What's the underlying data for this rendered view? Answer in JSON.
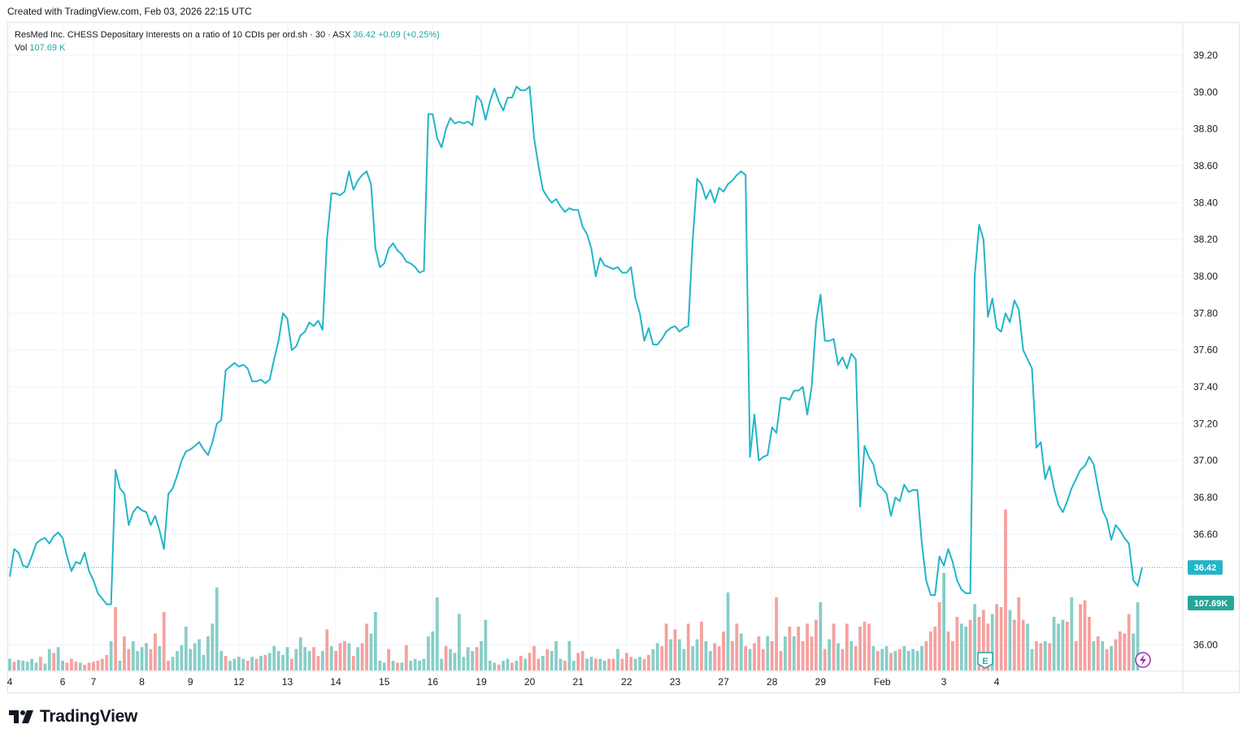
{
  "caption": "Created with TradingView.com, Feb 03, 2026 22:15 UTC",
  "legend": {
    "symbol_text": "ResMed Inc. CHESS Depositary Interests on a ratio of 10 CDIs per ord.sh · 30 · ASX",
    "last_price": "36.42",
    "change": "+0.09 (+0.25%)",
    "vol_label": "Vol",
    "vol_value": "107.69 K"
  },
  "brand": "TradingView",
  "colors": {
    "line": "#22b5c8",
    "volume_up": "#26a69a",
    "volume_down": "#ef5350",
    "price_badge": "#22b5c8",
    "volume_badge": "#26a69a",
    "grid": "#f0f3fa",
    "earnings_marker": "#26a69a",
    "dividend_marker": "#9c27b0"
  },
  "price_badge": "36.42",
  "volume_badge": "107.69K",
  "markers": [
    {
      "name": "earnings-marker",
      "label": "E",
      "color": "#26a69a"
    },
    {
      "name": "flash-marker",
      "icon": "lightning-icon",
      "color": "#9c27b0"
    }
  ],
  "chart_data": {
    "type": "line",
    "interval": "30",
    "exchange": "ASX",
    "y_axis": {
      "ticks": [
        "39.20",
        "39.00",
        "38.80",
        "38.60",
        "38.40",
        "38.20",
        "38.00",
        "37.80",
        "37.60",
        "37.40",
        "37.20",
        "37.00",
        "36.80",
        "36.60",
        "36.00"
      ],
      "tick_values": [
        39.2,
        39.0,
        38.8,
        38.6,
        38.4,
        38.2,
        38.0,
        37.8,
        37.6,
        37.4,
        37.2,
        37.0,
        36.8,
        36.6,
        36.0
      ],
      "ylim": [
        35.85,
        39.45
      ]
    },
    "x_axis": {
      "ticks": [
        "4",
        "6",
        "7",
        "8",
        "9",
        "12",
        "13",
        "14",
        "15",
        "16",
        "19",
        "20",
        "21",
        "22",
        "23",
        "27",
        "28",
        "29",
        "Feb",
        "3",
        "4"
      ],
      "tick_index": [
        0,
        12,
        19,
        30,
        41,
        52,
        63,
        74,
        85,
        96,
        107,
        118,
        129,
        140,
        151,
        162,
        173,
        184,
        198,
        212,
        224
      ]
    },
    "grid": true,
    "price_series": [
      36.37,
      36.52,
      36.5,
      36.43,
      36.42,
      36.48,
      36.55,
      36.57,
      36.58,
      36.55,
      36.59,
      36.61,
      36.58,
      36.48,
      36.4,
      36.45,
      36.44,
      36.5,
      36.4,
      36.35,
      36.28,
      36.25,
      36.22,
      36.22,
      36.95,
      36.85,
      36.82,
      36.65,
      36.72,
      36.75,
      36.73,
      36.72,
      36.65,
      36.7,
      36.62,
      36.52,
      36.82,
      36.85,
      36.92,
      37.0,
      37.05,
      37.06,
      37.08,
      37.1,
      37.06,
      37.03,
      37.1,
      37.2,
      37.22,
      37.49,
      37.51,
      37.53,
      37.51,
      37.52,
      37.5,
      37.43,
      37.43,
      37.44,
      37.42,
      37.44,
      37.55,
      37.65,
      37.8,
      37.77,
      37.6,
      37.62,
      37.68,
      37.7,
      37.75,
      37.73,
      37.76,
      37.71,
      38.2,
      38.45,
      38.45,
      38.44,
      38.46,
      38.57,
      38.47,
      38.52,
      38.55,
      38.57,
      38.5,
      38.15,
      38.05,
      38.07,
      38.15,
      38.18,
      38.14,
      38.12,
      38.08,
      38.07,
      38.05,
      38.02,
      38.03,
      38.88,
      38.88,
      38.75,
      38.7,
      38.8,
      38.86,
      38.83,
      38.84,
      38.83,
      38.84,
      38.82,
      38.98,
      38.95,
      38.85,
      38.95,
      39.02,
      38.95,
      38.9,
      38.97,
      38.97,
      39.03,
      39.01,
      39.01,
      39.03,
      38.75,
      38.6,
      38.47,
      38.43,
      38.4,
      38.42,
      38.38,
      38.35,
      38.37,
      38.36,
      38.36,
      38.27,
      38.23,
      38.15,
      38.0,
      38.1,
      38.06,
      38.05,
      38.04,
      38.05,
      38.02,
      38.02,
      38.05,
      37.88,
      37.8,
      37.65,
      37.72,
      37.63,
      37.63,
      37.66,
      37.7,
      37.72,
      37.73,
      37.7,
      37.72,
      37.73,
      38.2,
      38.53,
      38.5,
      38.42,
      38.47,
      38.4,
      38.48,
      38.46,
      38.5,
      38.52,
      38.55,
      38.57,
      38.55,
      37.02,
      37.25,
      37.0,
      37.02,
      37.03,
      37.18,
      37.15,
      37.34,
      37.34,
      37.33,
      37.38,
      37.38,
      37.4,
      37.25,
      37.4,
      37.75,
      37.9,
      37.65,
      37.65,
      37.66,
      37.52,
      37.56,
      37.5,
      37.58,
      37.55,
      36.75,
      37.08,
      37.02,
      36.98,
      36.87,
      36.85,
      36.82,
      36.7,
      36.8,
      36.78,
      36.87,
      36.83,
      36.84,
      36.84,
      36.55,
      36.35,
      36.27,
      36.27,
      36.48,
      36.43,
      36.52,
      36.45,
      36.35,
      36.3,
      36.28,
      36.28,
      38.0,
      38.28,
      38.2,
      37.78,
      37.88,
      37.72,
      37.7,
      37.8,
      37.75,
      37.87,
      37.82,
      37.6,
      37.55,
      37.5,
      37.07,
      37.1,
      36.9,
      36.97,
      36.85,
      36.76,
      36.72,
      36.78,
      36.85,
      36.9,
      36.95,
      36.97,
      37.02,
      36.98,
      36.85,
      36.73,
      36.68,
      36.57,
      36.65,
      36.62,
      36.58,
      36.55,
      36.35,
      36.32,
      36.42
    ],
    "volume_series": [
      {
        "v": 12,
        "up": true
      },
      {
        "v": 9,
        "up": false
      },
      {
        "v": 11,
        "up": true
      },
      {
        "v": 10,
        "up": true
      },
      {
        "v": 9,
        "up": true
      },
      {
        "v": 12,
        "up": true
      },
      {
        "v": 8,
        "up": true
      },
      {
        "v": 14,
        "up": false
      },
      {
        "v": 7,
        "up": true
      },
      {
        "v": 22,
        "up": true
      },
      {
        "v": 18,
        "up": false
      },
      {
        "v": 24,
        "up": true
      },
      {
        "v": 10,
        "up": true
      },
      {
        "v": 8,
        "up": false
      },
      {
        "v": 12,
        "up": false
      },
      {
        "v": 9,
        "up": false
      },
      {
        "v": 8,
        "up": true
      },
      {
        "v": 6,
        "up": false
      },
      {
        "v": 8,
        "up": false
      },
      {
        "v": 9,
        "up": false
      },
      {
        "v": 10,
        "up": false
      },
      {
        "v": 12,
        "up": false
      },
      {
        "v": 16,
        "up": false
      },
      {
        "v": 30,
        "up": true
      },
      {
        "v": 65,
        "up": false
      },
      {
        "v": 10,
        "up": true
      },
      {
        "v": 35,
        "up": false
      },
      {
        "v": 22,
        "up": false
      },
      {
        "v": 30,
        "up": true
      },
      {
        "v": 20,
        "up": true
      },
      {
        "v": 24,
        "up": true
      },
      {
        "v": 28,
        "up": true
      },
      {
        "v": 22,
        "up": false
      },
      {
        "v": 38,
        "up": false
      },
      {
        "v": 25,
        "up": true
      },
      {
        "v": 60,
        "up": false
      },
      {
        "v": 10,
        "up": false
      },
      {
        "v": 14,
        "up": true
      },
      {
        "v": 20,
        "up": true
      },
      {
        "v": 26,
        "up": true
      },
      {
        "v": 45,
        "up": true
      },
      {
        "v": 22,
        "up": true
      },
      {
        "v": 28,
        "up": true
      },
      {
        "v": 32,
        "up": true
      },
      {
        "v": 16,
        "up": true
      },
      {
        "v": 35,
        "up": true
      },
      {
        "v": 48,
        "up": true
      },
      {
        "v": 85,
        "up": true
      },
      {
        "v": 20,
        "up": true
      },
      {
        "v": 15,
        "up": false
      },
      {
        "v": 10,
        "up": true
      },
      {
        "v": 12,
        "up": true
      },
      {
        "v": 14,
        "up": true
      },
      {
        "v": 12,
        "up": true
      },
      {
        "v": 10,
        "up": false
      },
      {
        "v": 14,
        "up": true
      },
      {
        "v": 12,
        "up": false
      },
      {
        "v": 15,
        "up": true
      },
      {
        "v": 16,
        "up": false
      },
      {
        "v": 18,
        "up": true
      },
      {
        "v": 25,
        "up": true
      },
      {
        "v": 20,
        "up": true
      },
      {
        "v": 16,
        "up": true
      },
      {
        "v": 24,
        "up": true
      },
      {
        "v": 12,
        "up": false
      },
      {
        "v": 22,
        "up": true
      },
      {
        "v": 34,
        "up": true
      },
      {
        "v": 24,
        "up": true
      },
      {
        "v": 20,
        "up": true
      },
      {
        "v": 24,
        "up": false
      },
      {
        "v": 15,
        "up": false
      },
      {
        "v": 20,
        "up": true
      },
      {
        "v": 42,
        "up": false
      },
      {
        "v": 25,
        "up": true
      },
      {
        "v": 20,
        "up": false
      },
      {
        "v": 28,
        "up": false
      },
      {
        "v": 30,
        "up": false
      },
      {
        "v": 28,
        "up": true
      },
      {
        "v": 15,
        "up": false
      },
      {
        "v": 24,
        "up": true
      },
      {
        "v": 28,
        "up": false
      },
      {
        "v": 48,
        "up": false
      },
      {
        "v": 38,
        "up": true
      },
      {
        "v": 60,
        "up": true
      },
      {
        "v": 10,
        "up": true
      },
      {
        "v": 8,
        "up": true
      },
      {
        "v": 22,
        "up": false
      },
      {
        "v": 10,
        "up": true
      },
      {
        "v": 8,
        "up": false
      },
      {
        "v": 8,
        "up": true
      },
      {
        "v": 26,
        "up": false
      },
      {
        "v": 10,
        "up": true
      },
      {
        "v": 12,
        "up": true
      },
      {
        "v": 10,
        "up": true
      },
      {
        "v": 12,
        "up": true
      },
      {
        "v": 35,
        "up": true
      },
      {
        "v": 40,
        "up": true
      },
      {
        "v": 75,
        "up": true
      },
      {
        "v": 12,
        "up": true
      },
      {
        "v": 25,
        "up": false
      },
      {
        "v": 22,
        "up": true
      },
      {
        "v": 18,
        "up": true
      },
      {
        "v": 58,
        "up": true
      },
      {
        "v": 14,
        "up": true
      },
      {
        "v": 24,
        "up": true
      },
      {
        "v": 20,
        "up": true
      },
      {
        "v": 24,
        "up": false
      },
      {
        "v": 30,
        "up": true
      },
      {
        "v": 52,
        "up": true
      },
      {
        "v": 10,
        "up": true
      },
      {
        "v": 8,
        "up": true
      },
      {
        "v": 6,
        "up": false
      },
      {
        "v": 10,
        "up": true
      },
      {
        "v": 12,
        "up": true
      },
      {
        "v": 8,
        "up": false
      },
      {
        "v": 10,
        "up": true
      },
      {
        "v": 15,
        "up": false
      },
      {
        "v": 12,
        "up": true
      },
      {
        "v": 18,
        "up": false
      },
      {
        "v": 25,
        "up": false
      },
      {
        "v": 12,
        "up": false
      },
      {
        "v": 15,
        "up": true
      },
      {
        "v": 22,
        "up": false
      },
      {
        "v": 20,
        "up": true
      },
      {
        "v": 30,
        "up": true
      },
      {
        "v": 12,
        "up": true
      },
      {
        "v": 10,
        "up": false
      },
      {
        "v": 30,
        "up": true
      },
      {
        "v": 10,
        "up": true
      },
      {
        "v": 18,
        "up": false
      },
      {
        "v": 20,
        "up": false
      },
      {
        "v": 12,
        "up": true
      },
      {
        "v": 14,
        "up": true
      },
      {
        "v": 12,
        "up": false
      },
      {
        "v": 12,
        "up": true
      },
      {
        "v": 10,
        "up": true
      },
      {
        "v": 12,
        "up": false
      },
      {
        "v": 12,
        "up": false
      },
      {
        "v": 22,
        "up": true
      },
      {
        "v": 12,
        "up": false
      },
      {
        "v": 18,
        "up": false
      },
      {
        "v": 14,
        "up": false
      },
      {
        "v": 12,
        "up": true
      },
      {
        "v": 14,
        "up": true
      },
      {
        "v": 12,
        "up": false
      },
      {
        "v": 16,
        "up": false
      },
      {
        "v": 22,
        "up": true
      },
      {
        "v": 28,
        "up": true
      },
      {
        "v": 25,
        "up": false
      },
      {
        "v": 48,
        "up": false
      },
      {
        "v": 32,
        "up": true
      },
      {
        "v": 42,
        "up": false
      },
      {
        "v": 32,
        "up": true
      },
      {
        "v": 22,
        "up": true
      },
      {
        "v": 48,
        "up": false
      },
      {
        "v": 25,
        "up": true
      },
      {
        "v": 32,
        "up": true
      },
      {
        "v": 50,
        "up": false
      },
      {
        "v": 30,
        "up": true
      },
      {
        "v": 20,
        "up": true
      },
      {
        "v": 28,
        "up": false
      },
      {
        "v": 25,
        "up": false
      },
      {
        "v": 40,
        "up": false
      },
      {
        "v": 80,
        "up": true
      },
      {
        "v": 30,
        "up": false
      },
      {
        "v": 48,
        "up": false
      },
      {
        "v": 38,
        "up": true
      },
      {
        "v": 25,
        "up": false
      },
      {
        "v": 22,
        "up": true
      },
      {
        "v": 28,
        "up": false
      },
      {
        "v": 35,
        "up": false
      },
      {
        "v": 22,
        "up": false
      },
      {
        "v": 35,
        "up": true
      },
      {
        "v": 30,
        "up": false
      },
      {
        "v": 75,
        "up": false
      },
      {
        "v": 20,
        "up": false
      },
      {
        "v": 35,
        "up": true
      },
      {
        "v": 45,
        "up": false
      },
      {
        "v": 35,
        "up": true
      },
      {
        "v": 45,
        "up": false
      },
      {
        "v": 30,
        "up": false
      },
      {
        "v": 48,
        "up": false
      },
      {
        "v": 35,
        "up": false
      },
      {
        "v": 52,
        "up": false
      },
      {
        "v": 70,
        "up": true
      },
      {
        "v": 22,
        "up": false
      },
      {
        "v": 32,
        "up": true
      },
      {
        "v": 48,
        "up": false
      },
      {
        "v": 28,
        "up": true
      },
      {
        "v": 22,
        "up": false
      },
      {
        "v": 48,
        "up": false
      },
      {
        "v": 30,
        "up": true
      },
      {
        "v": 25,
        "up": false
      },
      {
        "v": 45,
        "up": false
      },
      {
        "v": 50,
        "up": false
      },
      {
        "v": 48,
        "up": false
      },
      {
        "v": 25,
        "up": true
      },
      {
        "v": 20,
        "up": false
      },
      {
        "v": 22,
        "up": true
      },
      {
        "v": 25,
        "up": true
      },
      {
        "v": 18,
        "up": false
      },
      {
        "v": 20,
        "up": true
      },
      {
        "v": 22,
        "up": false
      },
      {
        "v": 25,
        "up": true
      },
      {
        "v": 20,
        "up": true
      },
      {
        "v": 22,
        "up": true
      },
      {
        "v": 20,
        "up": true
      },
      {
        "v": 25,
        "up": true
      },
      {
        "v": 30,
        "up": false
      },
      {
        "v": 40,
        "up": false
      },
      {
        "v": 45,
        "up": false
      },
      {
        "v": 70,
        "up": false
      },
      {
        "v": 100,
        "up": true
      },
      {
        "v": 40,
        "up": false
      },
      {
        "v": 30,
        "up": false
      },
      {
        "v": 55,
        "up": false
      },
      {
        "v": 48,
        "up": true
      },
      {
        "v": 45,
        "up": true
      },
      {
        "v": 52,
        "up": false
      },
      {
        "v": 68,
        "up": true
      },
      {
        "v": 55,
        "up": false
      },
      {
        "v": 62,
        "up": false
      },
      {
        "v": 48,
        "up": false
      },
      {
        "v": 58,
        "up": true
      },
      {
        "v": 68,
        "up": false
      },
      {
        "v": 65,
        "up": false
      },
      {
        "v": 165,
        "up": false
      },
      {
        "v": 62,
        "up": true
      },
      {
        "v": 52,
        "up": false
      },
      {
        "v": 75,
        "up": false
      },
      {
        "v": 52,
        "up": false
      },
      {
        "v": 48,
        "up": true
      },
      {
        "v": 22,
        "up": true
      },
      {
        "v": 30,
        "up": false
      },
      {
        "v": 28,
        "up": false
      },
      {
        "v": 30,
        "up": true
      },
      {
        "v": 28,
        "up": false
      },
      {
        "v": 55,
        "up": true
      },
      {
        "v": 48,
        "up": true
      },
      {
        "v": 52,
        "up": true
      },
      {
        "v": 50,
        "up": false
      },
      {
        "v": 75,
        "up": true
      },
      {
        "v": 30,
        "up": false
      },
      {
        "v": 68,
        "up": false
      },
      {
        "v": 72,
        "up": false
      },
      {
        "v": 55,
        "up": false
      },
      {
        "v": 30,
        "up": true
      },
      {
        "v": 35,
        "up": false
      },
      {
        "v": 30,
        "up": true
      },
      {
        "v": 22,
        "up": false
      },
      {
        "v": 25,
        "up": true
      },
      {
        "v": 32,
        "up": false
      },
      {
        "v": 40,
        "up": false
      },
      {
        "v": 38,
        "up": false
      },
      {
        "v": 58,
        "up": false
      },
      {
        "v": 38,
        "up": true
      },
      {
        "v": 70,
        "up": true
      }
    ]
  }
}
